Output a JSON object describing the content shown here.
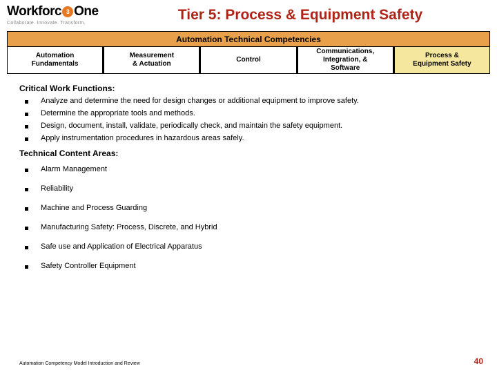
{
  "logo": {
    "text_pre": "Workforc",
    "text_post": "One",
    "tagline": "Collaborate. Innovate. Transform."
  },
  "slide_title": "Tier 5: Process & Equipment Safety",
  "banner": {
    "title": "Automation Technical Competencies",
    "columns": [
      {
        "label": "Automation Fundamentals",
        "highlight": false
      },
      {
        "label": "Measurement & Actuation",
        "highlight": false
      },
      {
        "label": "Control",
        "highlight": false
      },
      {
        "label": "Communications, Integration, & Software",
        "highlight": false
      },
      {
        "label": "Process & Equipment Safety",
        "highlight": true
      }
    ]
  },
  "sections": {
    "cwf_heading": "Critical Work Functions:",
    "cwf_items": [
      "Analyze and determine the need for design changes or additional equipment to improve safety.",
      "Determine the appropriate tools and methods.",
      "Design, document, install, validate, periodically check, and maintain the safety equipment.",
      "Apply instrumentation procedures in hazardous areas safely."
    ],
    "tca_heading": "Technical Content Areas:",
    "tca_items": [
      "Alarm Management",
      "Reliability",
      "Machine and Process Guarding",
      "Manufacturing Safety: Process, Discrete, and Hybrid",
      "Safe use and Application of Electrical Apparatus",
      "Safety Controller Equipment"
    ]
  },
  "footer": {
    "text": "Automation Competency Model Introduction and Review",
    "page": "40"
  },
  "colors": {
    "title_red": "#b02418",
    "banner_orange": "#e8a04a",
    "highlight_yellow": "#f5e79e",
    "logo_orange": "#e87722"
  }
}
